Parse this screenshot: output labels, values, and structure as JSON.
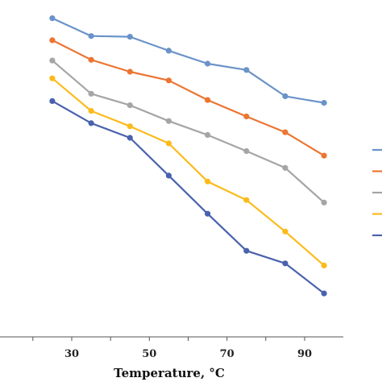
{
  "chart_data": {
    "type": "line",
    "xlabel": "Temperature, °C",
    "ylabel": "",
    "xlim": [
      12,
      100
    ],
    "ylim": [
      0,
      1
    ],
    "x_ticks": [
      30,
      50,
      70,
      90
    ],
    "x": [
      25,
      35,
      45,
      55,
      65,
      75,
      85,
      95
    ],
    "grid": false,
    "legend_position": "right",
    "series": [
      {
        "color": "#6a93c8",
        "values": [
          0.948,
          0.897,
          0.895,
          0.855,
          0.818,
          0.8,
          0.725,
          0.706
        ]
      },
      {
        "color": "#ec7532",
        "values": [
          0.885,
          0.829,
          0.795,
          0.77,
          0.714,
          0.667,
          0.622,
          0.555
        ]
      },
      {
        "color": "#a5a5a5",
        "values": [
          0.827,
          0.732,
          0.699,
          0.654,
          0.614,
          0.568,
          0.52,
          0.421
        ]
      },
      {
        "color": "#fbbb1c",
        "values": [
          0.776,
          0.683,
          0.639,
          0.59,
          0.481,
          0.428,
          0.338,
          0.241
        ]
      },
      {
        "color": "#4a62ad",
        "values": [
          0.711,
          0.648,
          0.606,
          0.498,
          0.389,
          0.283,
          0.247,
          0.161
        ]
      }
    ]
  }
}
